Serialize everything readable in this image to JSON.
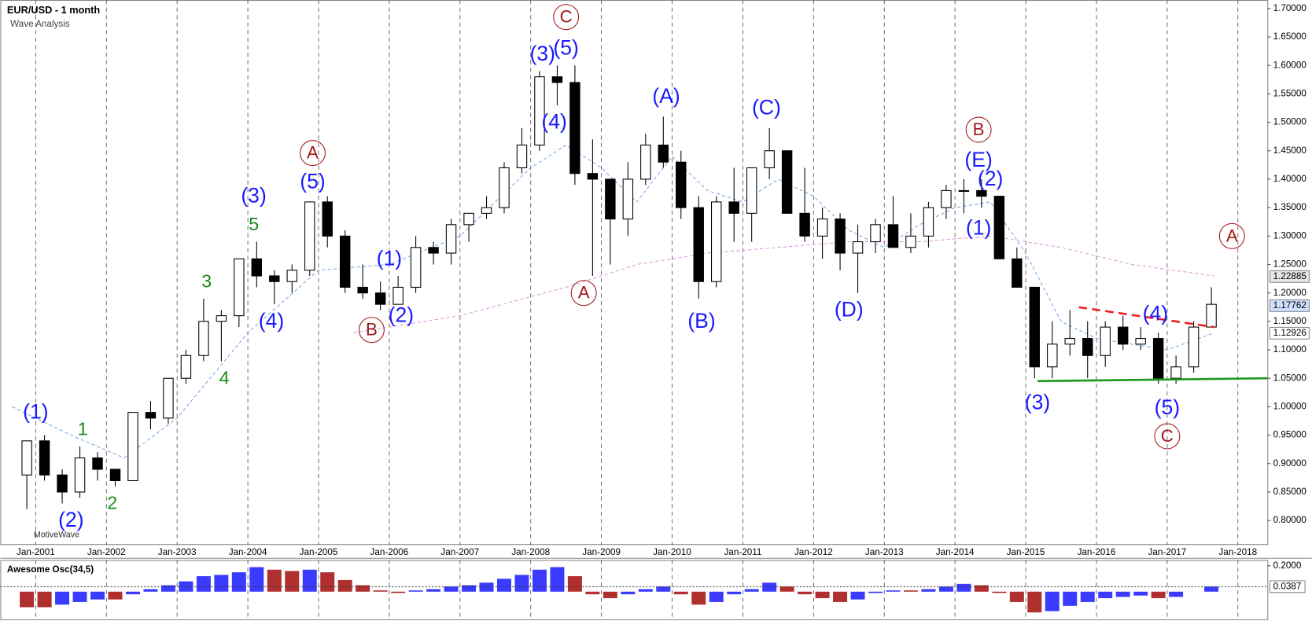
{
  "chart_data": {
    "type": "candlestick",
    "title": "EUR/USD - 1 month",
    "subtitle": "Wave Analysis",
    "watermark": "MotiveWave",
    "x": [
      "2000-10",
      "2001-01",
      "2001-04",
      "2001-07",
      "2001-10",
      "2002-01",
      "2002-04",
      "2002-07",
      "2002-10",
      "2003-01",
      "2003-04",
      "2003-07",
      "2003-10",
      "2004-01",
      "2004-04",
      "2004-07",
      "2004-10",
      "2005-01",
      "2005-04",
      "2005-07",
      "2005-10",
      "2006-01",
      "2006-04",
      "2006-07",
      "2006-10",
      "2007-01",
      "2007-04",
      "2007-07",
      "2007-10",
      "2008-01",
      "2008-04",
      "2008-07",
      "2008-10",
      "2009-01",
      "2009-04",
      "2009-07",
      "2009-10",
      "2010-01",
      "2010-04",
      "2010-07",
      "2010-10",
      "2011-01",
      "2011-04",
      "2011-07",
      "2011-10",
      "2012-01",
      "2012-04",
      "2012-07",
      "2012-10",
      "2013-01",
      "2013-04",
      "2013-07",
      "2013-10",
      "2014-01",
      "2014-04",
      "2014-07",
      "2014-10",
      "2015-01",
      "2015-04",
      "2015-07",
      "2015-10",
      "2016-01",
      "2016-04",
      "2016-07",
      "2016-10",
      "2017-01",
      "2017-04",
      "2017-07"
    ],
    "open": [
      0.88,
      0.94,
      0.88,
      0.85,
      0.91,
      0.89,
      0.87,
      0.99,
      0.98,
      1.05,
      1.09,
      1.15,
      1.16,
      1.26,
      1.23,
      1.22,
      1.24,
      1.36,
      1.3,
      1.21,
      1.2,
      1.18,
      1.21,
      1.28,
      1.27,
      1.32,
      1.34,
      1.35,
      1.42,
      1.46,
      1.58,
      1.57,
      1.41,
      1.4,
      1.33,
      1.4,
      1.46,
      1.43,
      1.35,
      1.22,
      1.36,
      1.34,
      1.42,
      1.45,
      1.34,
      1.3,
      1.33,
      1.27,
      1.29,
      1.32,
      1.28,
      1.3,
      1.35,
      1.38,
      1.38,
      1.37,
      1.26,
      1.21,
      1.07,
      1.11,
      1.12,
      1.09,
      1.14,
      1.11,
      1.12,
      1.05,
      1.07,
      1.14
    ],
    "high": [
      0.94,
      0.95,
      0.89,
      0.93,
      0.92,
      0.89,
      0.99,
      1.01,
      1.05,
      1.1,
      1.19,
      1.17,
      1.26,
      1.29,
      1.24,
      1.25,
      1.36,
      1.37,
      1.31,
      1.25,
      1.22,
      1.23,
      1.3,
      1.29,
      1.33,
      1.34,
      1.37,
      1.43,
      1.49,
      1.59,
      1.6,
      1.6,
      1.47,
      1.4,
      1.43,
      1.48,
      1.51,
      1.45,
      1.37,
      1.37,
      1.42,
      1.42,
      1.49,
      1.45,
      1.42,
      1.35,
      1.34,
      1.32,
      1.33,
      1.37,
      1.34,
      1.36,
      1.39,
      1.4,
      1.4,
      1.37,
      1.28,
      1.21,
      1.15,
      1.17,
      1.15,
      1.15,
      1.16,
      1.14,
      1.13,
      1.09,
      1.15,
      1.21
    ],
    "low": [
      0.82,
      0.87,
      0.83,
      0.84,
      0.87,
      0.86,
      0.87,
      0.96,
      0.97,
      1.04,
      1.08,
      1.08,
      1.14,
      1.21,
      1.18,
      1.2,
      1.23,
      1.28,
      1.2,
      1.19,
      1.17,
      1.18,
      1.2,
      1.25,
      1.25,
      1.29,
      1.33,
      1.34,
      1.41,
      1.45,
      1.53,
      1.39,
      1.23,
      1.25,
      1.3,
      1.39,
      1.42,
      1.33,
      1.19,
      1.21,
      1.29,
      1.29,
      1.4,
      1.34,
      1.29,
      1.26,
      1.24,
      1.2,
      1.27,
      1.28,
      1.27,
      1.28,
      1.33,
      1.34,
      1.35,
      1.26,
      1.21,
      1.05,
      1.05,
      1.09,
      1.05,
      1.07,
      1.1,
      1.1,
      1.04,
      1.04,
      1.06,
      1.14
    ],
    "close": [
      0.94,
      0.88,
      0.85,
      0.91,
      0.89,
      0.87,
      0.99,
      0.98,
      1.05,
      1.09,
      1.15,
      1.16,
      1.26,
      1.23,
      1.22,
      1.24,
      1.36,
      1.3,
      1.21,
      1.2,
      1.18,
      1.21,
      1.28,
      1.27,
      1.32,
      1.34,
      1.35,
      1.42,
      1.46,
      1.58,
      1.57,
      1.41,
      1.4,
      1.33,
      1.4,
      1.46,
      1.43,
      1.35,
      1.22,
      1.36,
      1.34,
      1.42,
      1.45,
      1.34,
      1.3,
      1.33,
      1.27,
      1.29,
      1.32,
      1.28,
      1.3,
      1.35,
      1.38,
      1.38,
      1.37,
      1.26,
      1.21,
      1.07,
      1.11,
      1.12,
      1.09,
      1.14,
      1.11,
      1.12,
      1.05,
      1.07,
      1.14,
      1.18
    ],
    "up_color": "#ffffff",
    "down_color": "#000000",
    "xlim": [
      "2000-07",
      "2018-06"
    ],
    "xticks": [
      {
        "value": "2001-01",
        "label": "Jan-2001"
      },
      {
        "value": "2002-01",
        "label": "Jan-2002"
      },
      {
        "value": "2003-01",
        "label": "Jan-2003"
      },
      {
        "value": "2004-01",
        "label": "Jan-2004"
      },
      {
        "value": "2005-01",
        "label": "Jan-2005"
      },
      {
        "value": "2006-01",
        "label": "Jan-2006"
      },
      {
        "value": "2007-01",
        "label": "Jan-2007"
      },
      {
        "value": "2008-01",
        "label": "Jan-2008"
      },
      {
        "value": "2009-01",
        "label": "Jan-2009"
      },
      {
        "value": "2010-01",
        "label": "Jan-2010"
      },
      {
        "value": "2011-01",
        "label": "Jan-2011"
      },
      {
        "value": "2012-01",
        "label": "Jan-2012"
      },
      {
        "value": "2013-01",
        "label": "Jan-2013"
      },
      {
        "value": "2014-01",
        "label": "Jan-2014"
      },
      {
        "value": "2015-01",
        "label": "Jan-2015"
      },
      {
        "value": "2016-01",
        "label": "Jan-2016"
      },
      {
        "value": "2017-01",
        "label": "Jan-2017"
      },
      {
        "value": "2018-01",
        "label": "Jan-2018"
      }
    ],
    "ylim": [
      0.757,
      1.715
    ],
    "yticks": [
      {
        "value": 0.8,
        "label": "0.80000"
      },
      {
        "value": 0.85,
        "label": "0.85000"
      },
      {
        "value": 0.9,
        "label": "0.90000"
      },
      {
        "value": 0.95,
        "label": "0.95000"
      },
      {
        "value": 1.0,
        "label": "1.00000"
      },
      {
        "value": 1.05,
        "label": "1.05000"
      },
      {
        "value": 1.1,
        "label": "1.10000"
      },
      {
        "value": 1.15,
        "label": "1.15000"
      },
      {
        "value": 1.2,
        "label": "1.20000"
      },
      {
        "value": 1.25,
        "label": "1.25000"
      },
      {
        "value": 1.3,
        "label": "1.30000"
      },
      {
        "value": 1.35,
        "label": "1.35000"
      },
      {
        "value": 1.4,
        "label": "1.40000"
      },
      {
        "value": 1.45,
        "label": "1.45000"
      },
      {
        "value": 1.5,
        "label": "1.50000"
      },
      {
        "value": 1.55,
        "label": "1.55000"
      },
      {
        "value": 1.6,
        "label": "1.60000"
      },
      {
        "value": 1.65,
        "label": "1.65000"
      },
      {
        "value": 1.7,
        "label": "1.70000"
      }
    ],
    "price_labels": [
      {
        "value": 1.22885,
        "label": "1.22885",
        "color": "#e6e6e6"
      },
      {
        "value": 1.17762,
        "label": "1.17762",
        "color": "#cfe0ff"
      },
      {
        "value": 1.12926,
        "label": "1.12926",
        "color": "#ffffff"
      }
    ],
    "moving_averages": [
      {
        "color": "#7aa7e8",
        "x": [
          "2000-09",
          "2001-07",
          "2002-04",
          "2003-01",
          "2004-01",
          "2005-01",
          "2006-01",
          "2007-01",
          "2008-01",
          "2008-07",
          "2009-01",
          "2009-07",
          "2010-01",
          "2010-07",
          "2011-01",
          "2011-07",
          "2012-01",
          "2012-07",
          "2013-01",
          "2013-07",
          "2014-01",
          "2014-07",
          "2015-01",
          "2015-07",
          "2016-01",
          "2016-07",
          "2017-01",
          "2017-09"
        ],
        "values": [
          1.0,
          0.95,
          0.91,
          0.98,
          1.13,
          1.24,
          1.25,
          1.3,
          1.42,
          1.46,
          1.42,
          1.36,
          1.44,
          1.38,
          1.36,
          1.4,
          1.37,
          1.31,
          1.28,
          1.32,
          1.35,
          1.36,
          1.27,
          1.15,
          1.12,
          1.11,
          1.1,
          1.13
        ]
      },
      {
        "color": "#d79ad9",
        "x": [
          "2005-07",
          "2007-01",
          "2008-07",
          "2009-07",
          "2010-07",
          "2011-07",
          "2012-07",
          "2013-07",
          "2014-07",
          "2015-07",
          "2016-07",
          "2017-09"
        ],
        "values": [
          1.13,
          1.16,
          1.21,
          1.25,
          1.27,
          1.28,
          1.29,
          1.29,
          1.3,
          1.28,
          1.25,
          1.23
        ]
      }
    ],
    "trendlines": [
      {
        "color": "#1e9a1e",
        "dashed": false,
        "x": [
          "2015-03",
          "2018-06"
        ],
        "values": [
          1.045,
          1.05
        ]
      },
      {
        "color": "#ee2222",
        "dashed": true,
        "x": [
          "2015-10",
          "2017-09"
        ],
        "values": [
          1.175,
          1.14
        ]
      }
    ],
    "annotations": [
      {
        "text": "(1)",
        "x": "2001-01",
        "y": 0.99,
        "color": "#1a1aff",
        "circle": false
      },
      {
        "text": "(2)",
        "x": "2001-07",
        "y": 0.8,
        "color": "#1a1aff",
        "circle": false
      },
      {
        "text": "1",
        "x": "2001-09",
        "y": 0.96,
        "color": "#1a8a1a",
        "circle": false
      },
      {
        "text": "2",
        "x": "2002-02",
        "y": 0.83,
        "color": "#1a8a1a",
        "circle": false
      },
      {
        "text": "3",
        "x": "2003-06",
        "y": 1.22,
        "color": "#1a8a1a",
        "circle": false
      },
      {
        "text": "4",
        "x": "2003-09",
        "y": 1.05,
        "color": "#1a8a1a",
        "circle": false
      },
      {
        "text": "5",
        "x": "2004-02",
        "y": 1.32,
        "color": "#1a8a1a",
        "circle": false
      },
      {
        "text": "(3)",
        "x": "2004-02",
        "y": 1.37,
        "color": "#1a1aff",
        "circle": false
      },
      {
        "text": "(4)",
        "x": "2004-05",
        "y": 1.15,
        "color": "#1a1aff",
        "circle": false
      },
      {
        "text": "(5)",
        "x": "2004-12",
        "y": 1.395,
        "color": "#1a1aff",
        "circle": false
      },
      {
        "text": "A",
        "x": "2004-12",
        "y": 1.446,
        "color": "#a01818",
        "circle": true
      },
      {
        "text": "(1)",
        "x": "2006-01",
        "y": 1.26,
        "color": "#1a1aff",
        "circle": false
      },
      {
        "text": "(2)",
        "x": "2006-03",
        "y": 1.16,
        "color": "#1a1aff",
        "circle": false
      },
      {
        "text": "B",
        "x": "2005-10",
        "y": 1.135,
        "color": "#a01818",
        "circle": true
      },
      {
        "text": "(3)",
        "x": "2008-03",
        "y": 1.62,
        "color": "#1a1aff",
        "circle": false
      },
      {
        "text": "(5)",
        "x": "2008-07",
        "y": 1.63,
        "color": "#1a1aff",
        "circle": false
      },
      {
        "text": "C",
        "x": "2008-07",
        "y": 1.685,
        "color": "#a01818",
        "circle": true
      },
      {
        "text": "(4)",
        "x": "2008-05",
        "y": 1.5,
        "color": "#1a1aff",
        "circle": false
      },
      {
        "text": "A",
        "x": "2008-10",
        "y": 1.2,
        "color": "#a01818",
        "circle": true
      },
      {
        "text": "(A)",
        "x": "2009-12",
        "y": 1.545,
        "color": "#1a1aff",
        "circle": false
      },
      {
        "text": "(B)",
        "x": "2010-06",
        "y": 1.15,
        "color": "#1a1aff",
        "circle": false
      },
      {
        "text": "(C)",
        "x": "2011-05",
        "y": 1.525,
        "color": "#1a1aff",
        "circle": false
      },
      {
        "text": "(D)",
        "x": "2012-07",
        "y": 1.17,
        "color": "#1a1aff",
        "circle": false
      },
      {
        "text": "B",
        "x": "2014-05",
        "y": 1.487,
        "color": "#a01818",
        "circle": true
      },
      {
        "text": "(E)",
        "x": "2014-05",
        "y": 1.433,
        "color": "#1a1aff",
        "circle": false
      },
      {
        "text": "(2)",
        "x": "2014-07",
        "y": 1.4,
        "color": "#1a1aff",
        "circle": false
      },
      {
        "text": "(1)",
        "x": "2014-05",
        "y": 1.314,
        "color": "#1a1aff",
        "circle": false
      },
      {
        "text": "(3)",
        "x": "2015-03",
        "y": 1.007,
        "color": "#1a1aff",
        "circle": false
      },
      {
        "text": "(4)",
        "x": "2016-11",
        "y": 1.163,
        "color": "#1a1aff",
        "circle": false
      },
      {
        "text": "(5)",
        "x": "2017-01",
        "y": 0.998,
        "color": "#1a1aff",
        "circle": false
      },
      {
        "text": "C",
        "x": "2017-01",
        "y": 0.948,
        "color": "#a01818",
        "circle": true
      },
      {
        "text": "A",
        "x": "2017-12",
        "y": 1.3,
        "color": "#a01818",
        "circle": true
      }
    ],
    "oscillator": {
      "title": "Awesome Osc(34,5)",
      "up_color": "#3b3bff",
      "down_color": "#b03030",
      "values": [
        -0.12,
        -0.12,
        -0.1,
        -0.08,
        -0.06,
        -0.06,
        -0.02,
        0.02,
        0.05,
        0.08,
        0.12,
        0.13,
        0.15,
        0.19,
        0.17,
        0.16,
        0.17,
        0.15,
        0.09,
        0.05,
        0.01,
        -0.01,
        0.01,
        0.02,
        0.04,
        0.05,
        0.07,
        0.1,
        0.13,
        0.17,
        0.19,
        0.12,
        -0.02,
        -0.05,
        -0.02,
        0.02,
        0.04,
        -0.02,
        -0.1,
        -0.08,
        -0.02,
        0.02,
        0.07,
        0.04,
        -0.02,
        -0.05,
        -0.08,
        -0.06,
        -0.01,
        0.01,
        0.01,
        0.02,
        0.04,
        0.06,
        0.05,
        -0.01,
        -0.08,
        -0.16,
        -0.15,
        -0.11,
        -0.08,
        -0.05,
        -0.04,
        -0.03,
        -0.05,
        -0.04,
        0.0,
        0.04
      ],
      "ylim": [
        -0.22,
        0.245
      ],
      "yticks": [
        {
          "value": 0.2,
          "label": "0.2000"
        }
      ],
      "value_label": {
        "value": 0.0387,
        "label": "0.0387"
      }
    }
  }
}
